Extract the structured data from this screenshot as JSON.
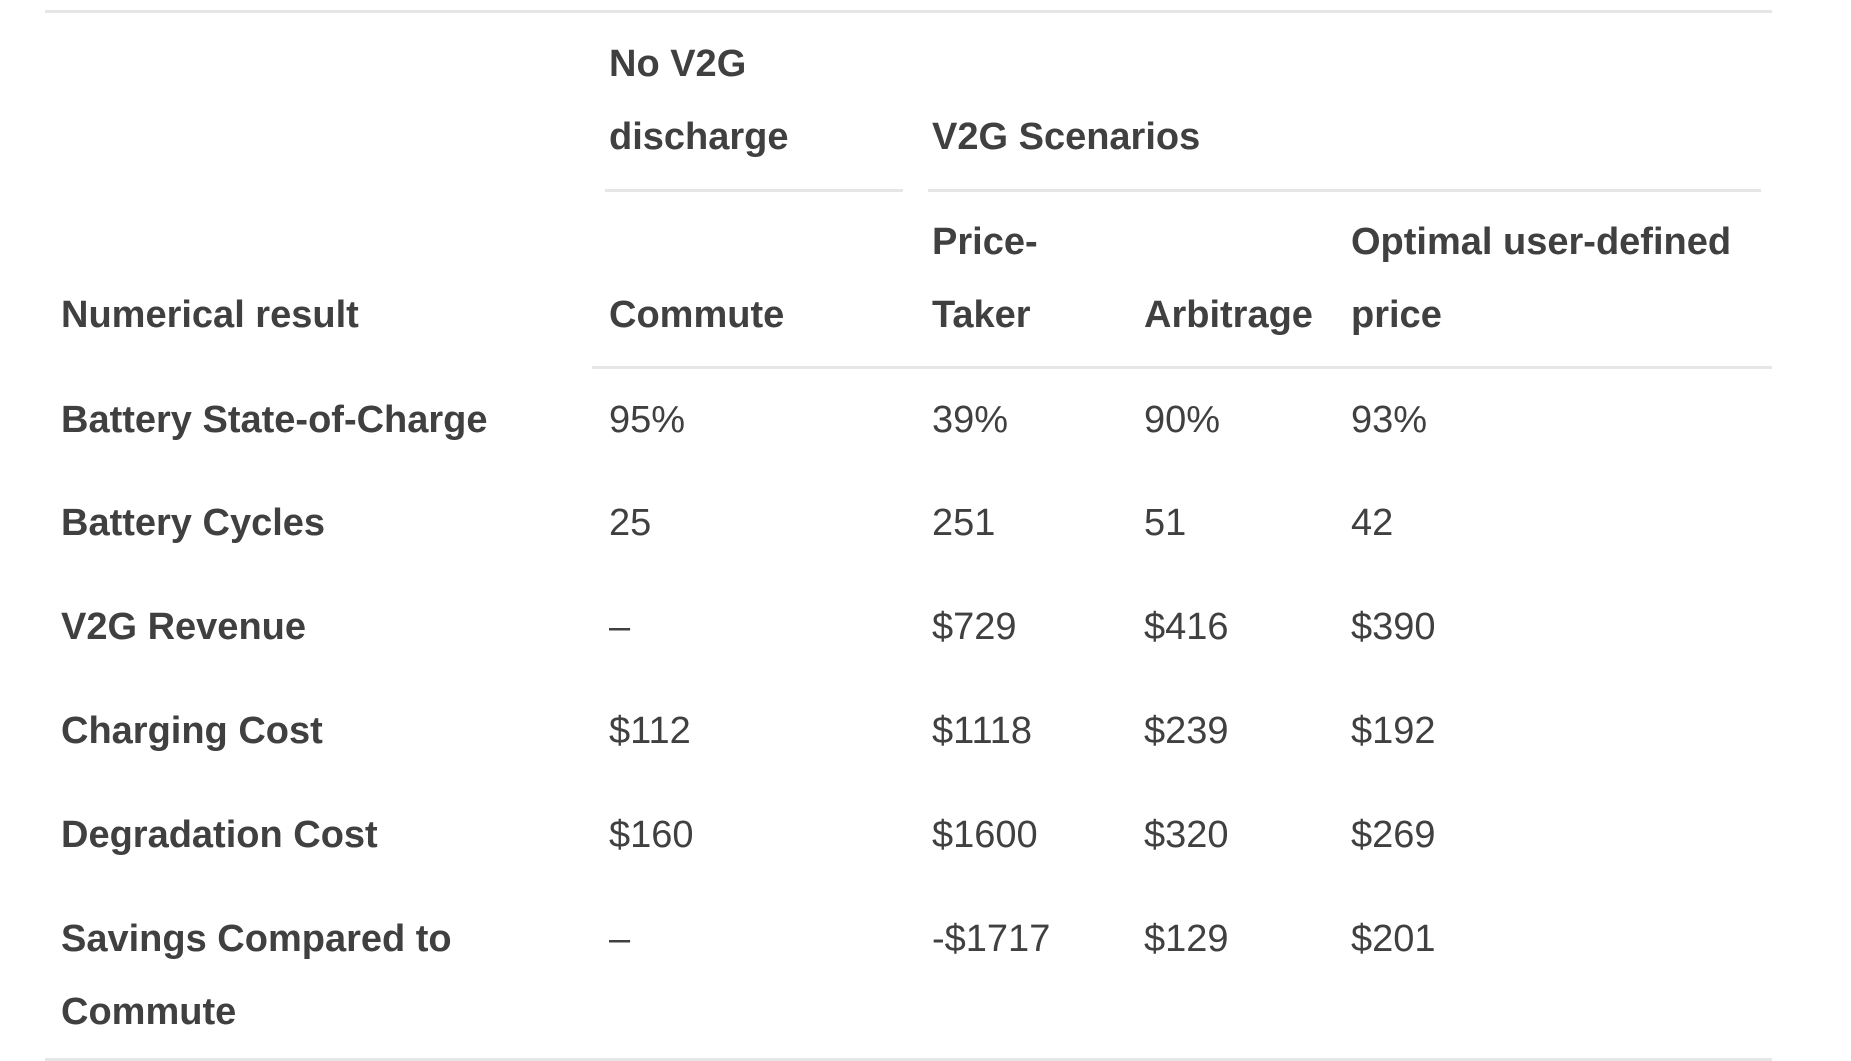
{
  "table": {
    "group_headers": {
      "no_v2g": [
        "No V2G",
        "discharge"
      ],
      "v2g": "V2G Scenarios"
    },
    "column_headers": {
      "numerical_result": "Numerical result",
      "commute": "Commute",
      "price_taker": [
        "Price-",
        "Taker"
      ],
      "arbitrage": "Arbitrage",
      "optimal": [
        "Optimal user-defined",
        "price"
      ]
    },
    "rows": [
      {
        "label": [
          "Battery State-of-Charge"
        ],
        "commute": "95%",
        "price_taker": "39%",
        "arbitrage": "90%",
        "optimal": "93%"
      },
      {
        "label": [
          "Battery Cycles"
        ],
        "commute": "25",
        "price_taker": "251",
        "arbitrage": "51",
        "optimal": "42"
      },
      {
        "label": [
          "V2G Revenue"
        ],
        "commute": "–",
        "price_taker": "$729",
        "arbitrage": "$416",
        "optimal": "$390"
      },
      {
        "label": [
          "Charging Cost"
        ],
        "commute": "$112",
        "price_taker": "$1118",
        "arbitrage": "$239",
        "optimal": "$192"
      },
      {
        "label": [
          "Degradation Cost"
        ],
        "commute": "$160",
        "price_taker": "$1600",
        "arbitrage": "$320",
        "optimal": "$269"
      },
      {
        "label": [
          "Savings Compared to",
          "Commute"
        ],
        "commute": "–",
        "price_taker": "-$1717",
        "arbitrage": "$129",
        "optimal": "$201"
      }
    ]
  }
}
